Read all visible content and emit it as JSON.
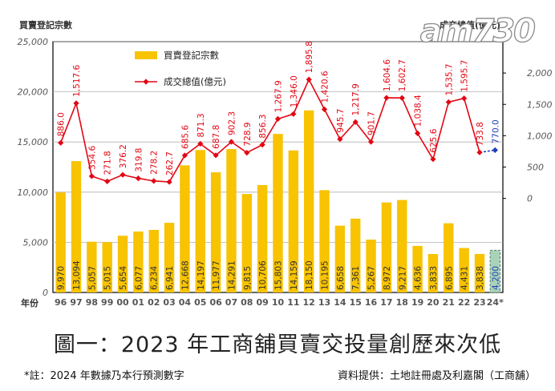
{
  "chart_data": {
    "type": "bar+line",
    "title": "圖一：2023 年工商舖買賣交投量創歷來次低",
    "left_axis_title": "買賣登記宗數",
    "right_axis_title": "成交總值(億元)",
    "x_axis_title": "年份",
    "categories": [
      "96",
      "97",
      "98",
      "99",
      "00",
      "01",
      "02",
      "03",
      "04",
      "05",
      "06",
      "07",
      "08",
      "09",
      "10",
      "11",
      "12",
      "13",
      "14",
      "15",
      "16",
      "17",
      "18",
      "19",
      "20",
      "21",
      "22",
      "23",
      "24*"
    ],
    "series": [
      {
        "name": "買賣登記宗數",
        "type": "bar",
        "axis": "left",
        "values": [
          9970,
          13094,
          5057,
          5015,
          5654,
          6077,
          6234,
          6941,
          12668,
          14197,
          11977,
          14291,
          9815,
          10706,
          15803,
          14159,
          18150,
          10195,
          6658,
          7361,
          5267,
          8972,
          9217,
          4636,
          3833,
          6895,
          4431,
          3838,
          4200
        ],
        "labels": [
          "9,970",
          "13,094",
          "5,057",
          "5,015",
          "5,654",
          "6,077",
          "6,234",
          "6,941",
          "12,668",
          "14,197",
          "11,977",
          "14,291",
          "9,815",
          "10,706",
          "15,803",
          "14,159",
          "18,150",
          "10,195",
          "6,658",
          "7,361",
          "5,267",
          "8,972",
          "9,217",
          "4,636",
          "3,833",
          "6,895",
          "4,431",
          "3,838",
          "4,200"
        ]
      },
      {
        "name": "成交總值(億元)",
        "type": "line",
        "axis": "right",
        "values": [
          886.0,
          1517.6,
          354.6,
          271.8,
          376.2,
          319.8,
          278.2,
          262.7,
          685.6,
          871.3,
          687.8,
          902.3,
          728.9,
          856.3,
          1267.9,
          1346.0,
          1895.8,
          1420.6,
          945.7,
          1217.9,
          901.7,
          1604.6,
          1602.7,
          1038.4,
          625.6,
          1535.7,
          1595.7,
          733.8,
          770.0
        ],
        "labels": [
          "886.0",
          "1,517.6",
          "354.6",
          "271.8",
          "376.2",
          "319.8",
          "278.2",
          "262.7",
          "685.6",
          "871.3",
          "687.8",
          "902.3",
          "728.9",
          "856.3",
          "1,267.9",
          "1,346.0",
          "1,895.8",
          "1,420.6",
          "945.7",
          "1,217.9",
          "901.7",
          "1,604.6",
          "1,602.7",
          "1,038.4",
          "625.6",
          "1,535.7",
          "1,595.7",
          "733.8",
          "770.0"
        ]
      }
    ],
    "left_axis": {
      "min": 0,
      "max": 25000,
      "ticks": [
        0,
        5000,
        10000,
        15000,
        20000,
        25000
      ],
      "tick_labels": [
        "0",
        "5,000",
        "10,000",
        "15,000",
        "20,000",
        "25,000"
      ]
    },
    "right_axis": {
      "min": -1500,
      "max": 2500,
      "ticks": [
        0,
        500,
        1000,
        1500,
        2000
      ],
      "tick_labels": [
        "0",
        "500",
        "1,000",
        "1,500",
        "2,000"
      ]
    },
    "forecast_category": "24*",
    "colors": {
      "bar": "#f8c300",
      "bar_forecast": "#a9d2b8",
      "line": "#e30613",
      "line_forecast": "#1f3fbf",
      "grid": "#b0b0b0",
      "axis_text": "#555555",
      "frame": "#000000"
    },
    "grid": true,
    "legend_position": "top-left"
  },
  "footnote": "*註：2024 年數據乃本行預測數字",
  "source": "資料提供：土地註冊處及利嘉閣（工商舖）",
  "watermark": "am730"
}
